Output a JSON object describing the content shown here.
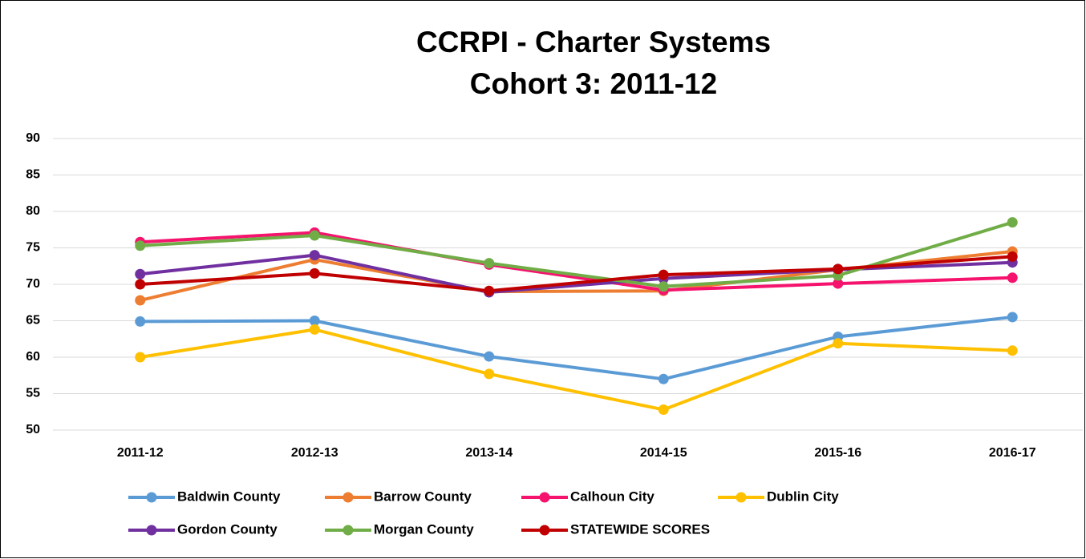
{
  "chart_data": {
    "type": "line",
    "title": "CCRPI - Charter Systems",
    "subtitle": "Cohort 3: 2011-12",
    "categories": [
      "2011-12",
      "2012-13",
      "2013-14",
      "2014-15",
      "2015-16",
      "2016-17"
    ],
    "series": [
      {
        "name": "Baldwin County",
        "color": "#5b9bd5",
        "values": [
          64.9,
          65.0,
          60.1,
          57.0,
          62.8,
          65.5
        ]
      },
      {
        "name": "Barrow County",
        "color": "#ed7d31",
        "values": [
          67.8,
          73.4,
          69.0,
          69.1,
          72.0,
          74.5
        ]
      },
      {
        "name": "Calhoun City",
        "color": "#f5136e",
        "values": [
          75.8,
          77.1,
          72.7,
          69.2,
          70.1,
          70.9
        ]
      },
      {
        "name": "Dublin City",
        "color": "#ffc000",
        "values": [
          60.0,
          63.8,
          57.7,
          52.8,
          61.9,
          60.9
        ]
      },
      {
        "name": "Gordon  County",
        "color": "#7030a0",
        "values": [
          71.4,
          74.0,
          68.9,
          70.8,
          72.0,
          73.0
        ]
      },
      {
        "name": "Morgan County",
        "color": "#70ad47",
        "values": [
          75.3,
          76.7,
          72.9,
          69.7,
          71.2,
          78.5
        ]
      },
      {
        "name": "STATEWIDE SCORES",
        "color": "#c00000",
        "values": [
          70.0,
          71.5,
          69.1,
          71.3,
          72.1,
          73.8
        ]
      }
    ],
    "ylim": [
      50,
      90
    ],
    "yticks": [
      50,
      55,
      60,
      65,
      70,
      75,
      80,
      85,
      90
    ],
    "grid": true,
    "legend": "bottom"
  }
}
